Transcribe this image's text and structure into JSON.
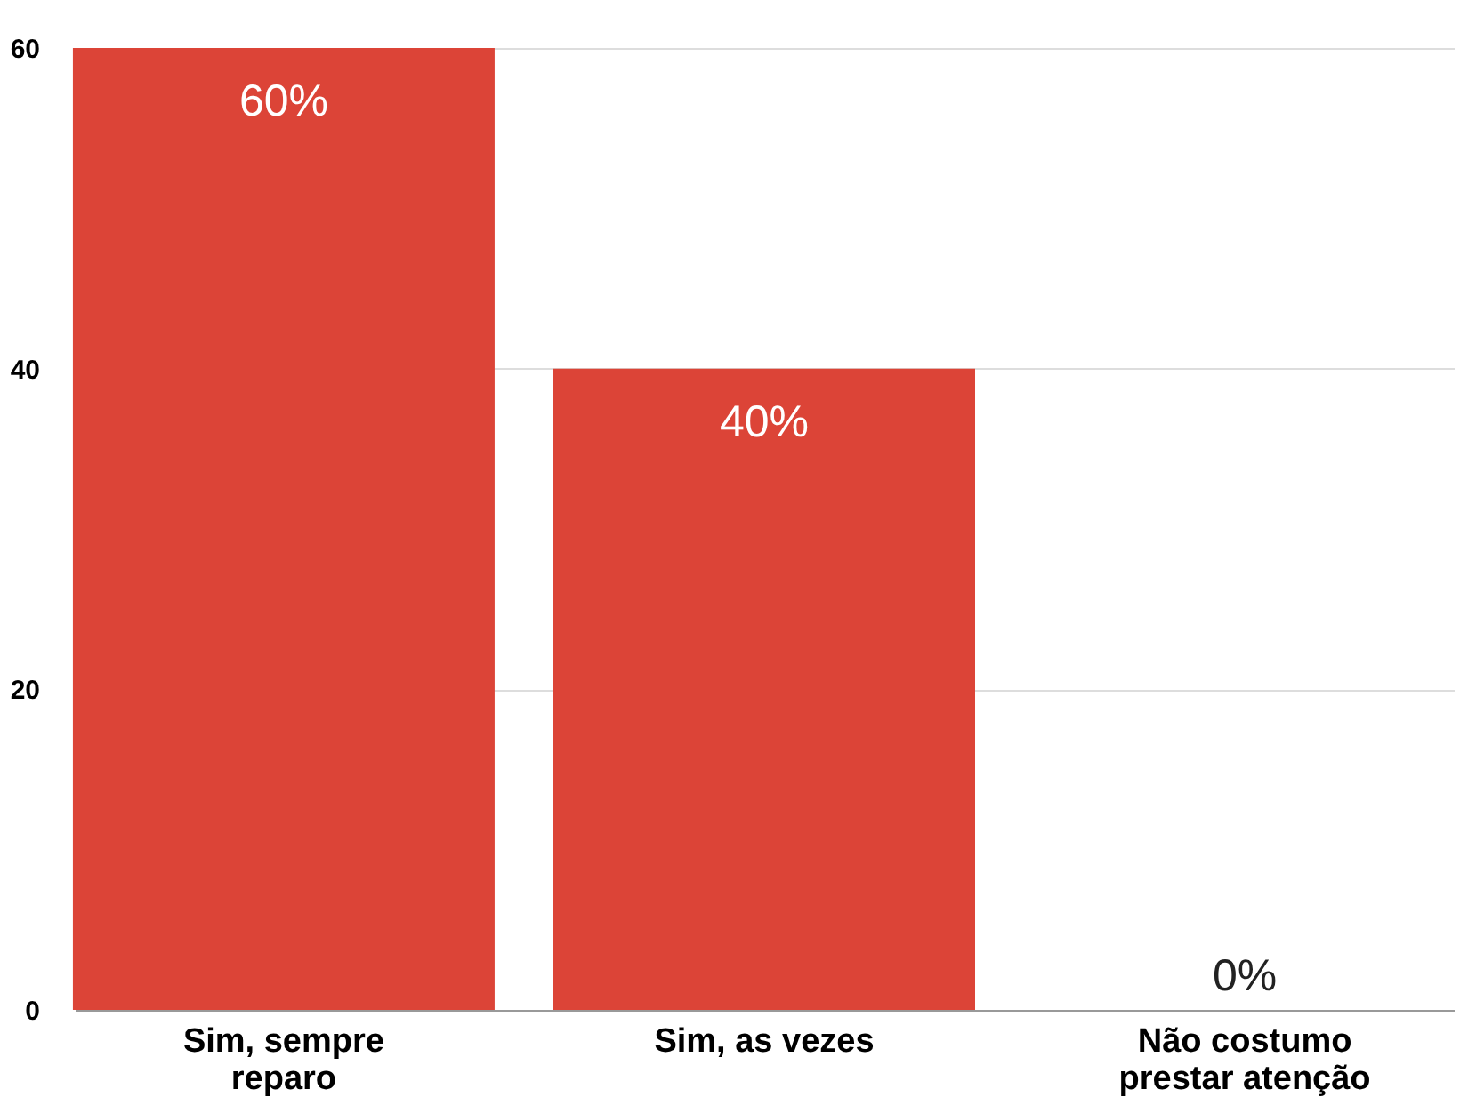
{
  "chart_data": {
    "type": "bar",
    "categories": [
      "Sim, sempre reparo",
      "Sim, as vezes",
      "Não costumo prestar atenção"
    ],
    "values": [
      60,
      40,
      0
    ],
    "value_labels": [
      "60%",
      "40%",
      "0%"
    ],
    "color": "#dc4437",
    "ylim": [
      0,
      60
    ],
    "yticks": [
      0,
      20,
      40,
      60
    ],
    "grid": "y"
  }
}
